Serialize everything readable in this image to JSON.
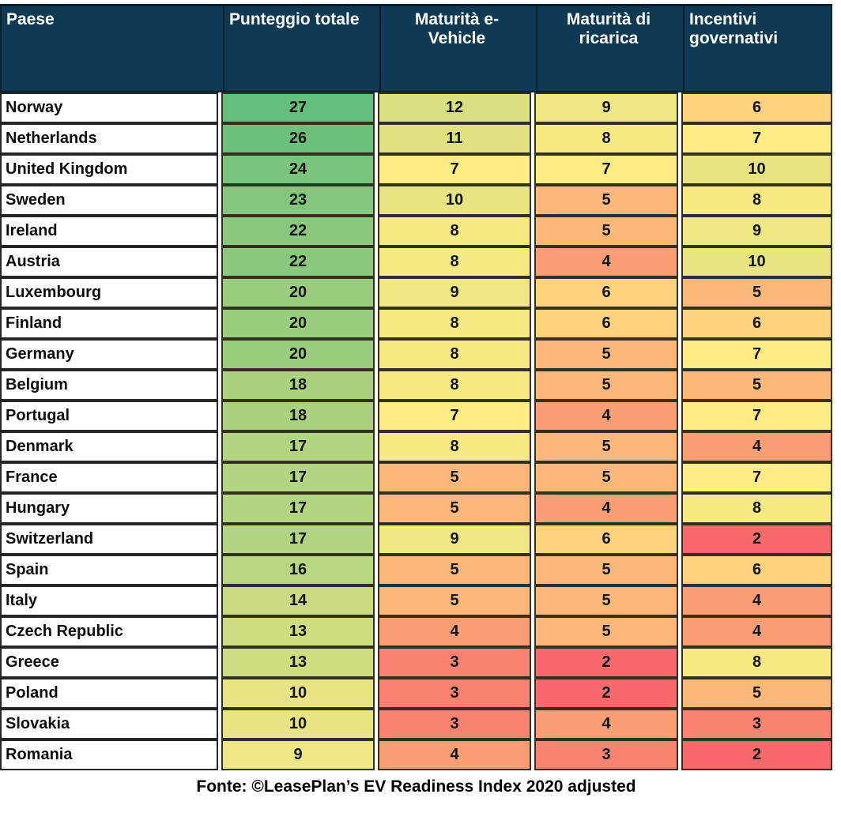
{
  "header": {
    "bg": "#0E3A54",
    "text_color": "#FFFFFF",
    "columns": [
      {
        "id": "paese",
        "align": "left",
        "lines": [
          "Paese"
        ]
      },
      {
        "id": "punteggio-totale",
        "align": "left",
        "lines": [
          "Punteggio totale"
        ]
      },
      {
        "id": "maturita-e-vehicle",
        "align": "center",
        "lines": [
          "Maturità e-",
          "Vehicle"
        ]
      },
      {
        "id": "maturita-di-ricarica",
        "align": "center",
        "lines": [
          "Maturità di",
          "ricarica"
        ]
      },
      {
        "id": "incentivi-governativi",
        "align": "left",
        "lines": [
          "Incentivi",
          "governativi"
        ]
      }
    ]
  },
  "chart_data": {
    "type": "heatmap",
    "columns": [
      "Paese",
      "Punteggio totale",
      "Maturità e-Vehicle",
      "Maturità di ricarica",
      "Incentivi governativi"
    ],
    "rows": [
      [
        "Norway",
        27,
        12,
        9,
        6
      ],
      [
        "Netherlands",
        26,
        11,
        8,
        7
      ],
      [
        "United Kingdom",
        24,
        7,
        7,
        10
      ],
      [
        "Sweden",
        23,
        10,
        5,
        8
      ],
      [
        "Ireland",
        22,
        8,
        5,
        9
      ],
      [
        "Austria",
        22,
        8,
        4,
        10
      ],
      [
        "Luxembourg",
        20,
        9,
        6,
        5
      ],
      [
        "Finland",
        20,
        8,
        6,
        6
      ],
      [
        "Germany",
        20,
        8,
        5,
        7
      ],
      [
        "Belgium",
        18,
        8,
        5,
        5
      ],
      [
        "Portugal",
        18,
        7,
        4,
        7
      ],
      [
        "Denmark",
        17,
        8,
        5,
        4
      ],
      [
        "France",
        17,
        5,
        5,
        7
      ],
      [
        "Hungary",
        17,
        5,
        4,
        8
      ],
      [
        "Switzerland",
        17,
        9,
        6,
        2
      ],
      [
        "Spain",
        16,
        5,
        5,
        6
      ],
      [
        "Italy",
        14,
        5,
        5,
        4
      ],
      [
        "Czech Republic",
        13,
        4,
        5,
        4
      ],
      [
        "Greece",
        13,
        3,
        2,
        8
      ],
      [
        "Poland",
        10,
        3,
        2,
        5
      ],
      [
        "Slovakia",
        10,
        3,
        4,
        3
      ],
      [
        "Romania",
        9,
        4,
        3,
        2
      ]
    ],
    "source": "Fonte: ©LeasePlan’s EV Readiness Index 2020 adjusted",
    "color_scale": {
      "min_value": 2,
      "mid_value": 7,
      "max_value": 27,
      "min_color": "#F8696B",
      "mid_color": "#FFEB84",
      "max_color": "#63BE7B"
    },
    "legend_position": "none",
    "grid": true
  },
  "colors": {
    "header_bg": "#0E3A54",
    "border": "#262626",
    "value_colors": {
      "2": "#F8696B",
      "3": "#F98370",
      "4": "#FB9D75",
      "5": "#FCB77A",
      "6": "#FED17F",
      "7": "#FFEB84",
      "8": "#F7E984",
      "9": "#EFE783",
      "10": "#E8E483",
      "11": "#E0E282",
      "12": "#D8E082",
      "13": "#D0DE81",
      "14": "#C8DB81",
      "16": "#B9D780",
      "17": "#B1D580",
      "18": "#A9D27F",
      "20": "#9ACE7E",
      "22": "#8AC97D",
      "23": "#82C77D",
      "24": "#7AC57C",
      "26": "#6BC07B",
      "27": "#63BE7B"
    }
  }
}
